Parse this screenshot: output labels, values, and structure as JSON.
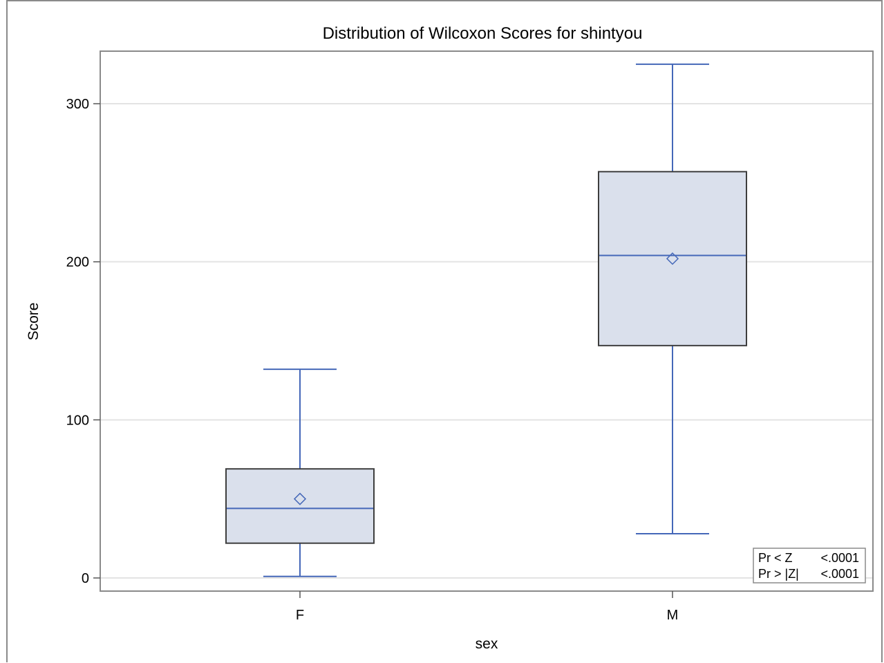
{
  "chart_data": {
    "type": "boxplot",
    "title": "Distribution of Wilcoxon Scores for shintyou",
    "xlabel": "sex",
    "ylabel": "Score",
    "ylim": [
      -8,
      333
    ],
    "yticks": [
      0,
      100,
      200,
      300
    ],
    "grid": "horizontal",
    "categories": [
      "F",
      "M"
    ],
    "boxes": [
      {
        "category": "F",
        "min": 1,
        "q1": 22,
        "median": 44,
        "q3": 69,
        "max": 132,
        "mean": 50
      },
      {
        "category": "M",
        "min": 28,
        "q1": 147,
        "median": 204,
        "q3": 257,
        "max": 325,
        "mean": 202
      }
    ],
    "inset": {
      "rows": [
        {
          "label": "Pr < Z",
          "value": "<.0001"
        },
        {
          "label": "Pr > |Z|",
          "value": "<.0001"
        }
      ],
      "position": "bottom-right"
    },
    "colors": {
      "box_fill": "#dae0ec",
      "box_edge": "#3d3d3d",
      "whisker": "#4467b8",
      "grid": "#e3e3e3",
      "frame": "#8a8a8a"
    }
  }
}
